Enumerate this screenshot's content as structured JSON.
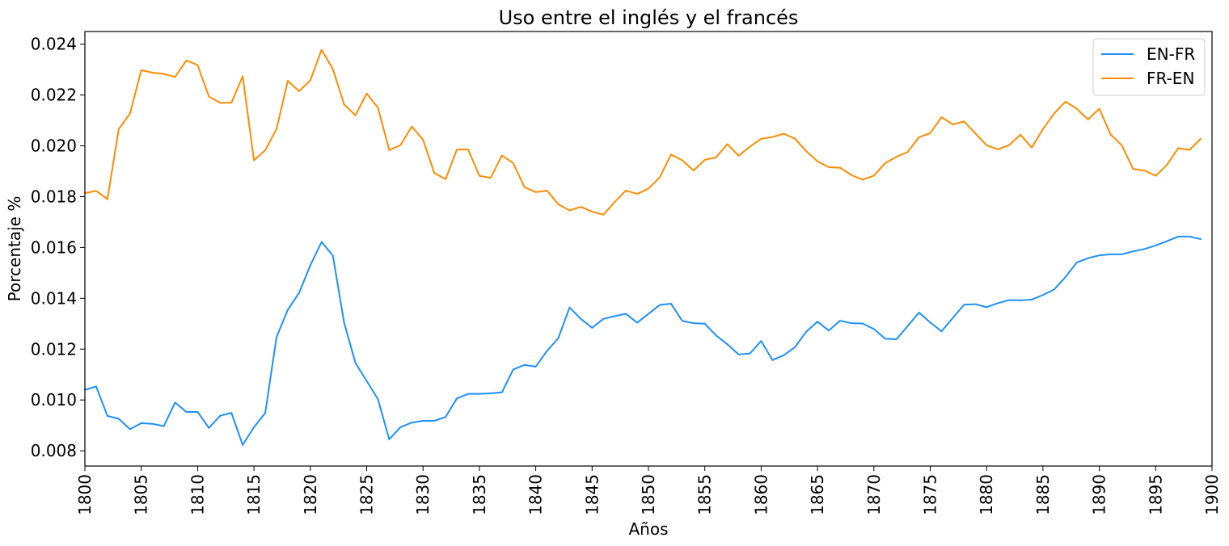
{
  "chart_data": {
    "type": "line",
    "title": "Uso entre el inglés y el francés",
    "xlabel": "Años",
    "ylabel": "Porcentaje %",
    "xlim": [
      1800,
      1900
    ],
    "ylim": [
      0.0074,
      0.0245
    ],
    "xticks": [
      "1800",
      "1805",
      "1810",
      "1815",
      "1820",
      "1825",
      "1830",
      "1835",
      "1840",
      "1845",
      "1850",
      "1855",
      "1860",
      "1865",
      "1870",
      "1875",
      "1880",
      "1885",
      "1890",
      "1895",
      "1900"
    ],
    "yticks": [
      "0.008",
      "0.010",
      "0.012",
      "0.014",
      "0.016",
      "0.018",
      "0.020",
      "0.022",
      "0.024"
    ],
    "legend_position": "top-right",
    "grid": false,
    "x": [
      1800,
      1801,
      1802,
      1803,
      1804,
      1805,
      1806,
      1807,
      1808,
      1809,
      1810,
      1811,
      1812,
      1813,
      1814,
      1815,
      1816,
      1817,
      1818,
      1819,
      1820,
      1821,
      1822,
      1823,
      1824,
      1825,
      1826,
      1827,
      1828,
      1829,
      1830,
      1831,
      1832,
      1833,
      1834,
      1835,
      1836,
      1837,
      1838,
      1839,
      1840,
      1841,
      1842,
      1843,
      1844,
      1845,
      1846,
      1847,
      1848,
      1849,
      1850,
      1851,
      1852,
      1853,
      1854,
      1855,
      1856,
      1857,
      1858,
      1859,
      1860,
      1861,
      1862,
      1863,
      1864,
      1865,
      1866,
      1867,
      1868,
      1869,
      1870,
      1871,
      1872,
      1873,
      1874,
      1875,
      1876,
      1877,
      1878,
      1879,
      1880,
      1881,
      1882,
      1883,
      1884,
      1885,
      1886,
      1887,
      1888,
      1889,
      1890,
      1891,
      1892,
      1893,
      1894,
      1895,
      1896,
      1897,
      1898,
      1899
    ],
    "series": [
      {
        "name": "EN-FR",
        "color": "#1e90ff",
        "values": [
          0.0104,
          0.01053,
          0.00937,
          0.00926,
          0.00885,
          0.00909,
          0.00906,
          0.00897,
          0.0099,
          0.00953,
          0.00953,
          0.0089,
          0.00938,
          0.00949,
          0.00823,
          0.00893,
          0.00949,
          0.01247,
          0.01355,
          0.01421,
          0.0153,
          0.01622,
          0.01568,
          0.01304,
          0.01146,
          0.01075,
          0.01003,
          0.00845,
          0.00893,
          0.00911,
          0.00918,
          0.00918,
          0.00933,
          0.01006,
          0.01024,
          0.01024,
          0.01026,
          0.0103,
          0.0112,
          0.01138,
          0.01131,
          0.01193,
          0.01243,
          0.01364,
          0.01319,
          0.01284,
          0.01319,
          0.0133,
          0.01339,
          0.01304,
          0.01339,
          0.01374,
          0.01379,
          0.01311,
          0.01302,
          0.013,
          0.01254,
          0.01219,
          0.01179,
          0.01183,
          0.01232,
          0.01157,
          0.01176,
          0.01208,
          0.01269,
          0.01308,
          0.01273,
          0.01312,
          0.01302,
          0.01301,
          0.01279,
          0.01241,
          0.01239,
          0.01291,
          0.01344,
          0.01305,
          0.0127,
          0.01323,
          0.01375,
          0.01377,
          0.01365,
          0.01381,
          0.01393,
          0.01392,
          0.01395,
          0.01413,
          0.01435,
          0.01484,
          0.01541,
          0.01558,
          0.01569,
          0.01573,
          0.01573,
          0.01585,
          0.01594,
          0.01608,
          0.01625,
          0.01643,
          0.01643,
          0.01633
        ]
      },
      {
        "name": "FR-EN",
        "color": "#ff8c00",
        "values": [
          0.01814,
          0.01823,
          0.0179,
          0.02066,
          0.02127,
          0.02298,
          0.02288,
          0.02283,
          0.02271,
          0.02336,
          0.02318,
          0.02194,
          0.02169,
          0.0217,
          0.02274,
          0.01943,
          0.01983,
          0.02066,
          0.02256,
          0.02215,
          0.02258,
          0.02378,
          0.02302,
          0.02163,
          0.0212,
          0.02206,
          0.0215,
          0.01983,
          0.02003,
          0.02076,
          0.02024,
          0.01893,
          0.01869,
          0.01985,
          0.01986,
          0.01882,
          0.01874,
          0.01962,
          0.01932,
          0.01837,
          0.01818,
          0.01824,
          0.0177,
          0.01746,
          0.0176,
          0.01741,
          0.01729,
          0.01779,
          0.01824,
          0.01811,
          0.01832,
          0.01876,
          0.01966,
          0.01943,
          0.01903,
          0.01945,
          0.01955,
          0.02007,
          0.01961,
          0.01997,
          0.02028,
          0.02035,
          0.02048,
          0.02028,
          0.01979,
          0.01939,
          0.01916,
          0.01914,
          0.01885,
          0.01867,
          0.01883,
          0.01932,
          0.01957,
          0.01976,
          0.02034,
          0.0205,
          0.02113,
          0.02084,
          0.02096,
          0.02049,
          0.02002,
          0.01986,
          0.02003,
          0.02044,
          0.01993,
          0.02066,
          0.02128,
          0.02174,
          0.02146,
          0.02104,
          0.02146,
          0.02045,
          0.02002,
          0.01909,
          0.01903,
          0.01882,
          0.01925,
          0.01991,
          0.01984,
          0.02028
        ]
      }
    ]
  }
}
